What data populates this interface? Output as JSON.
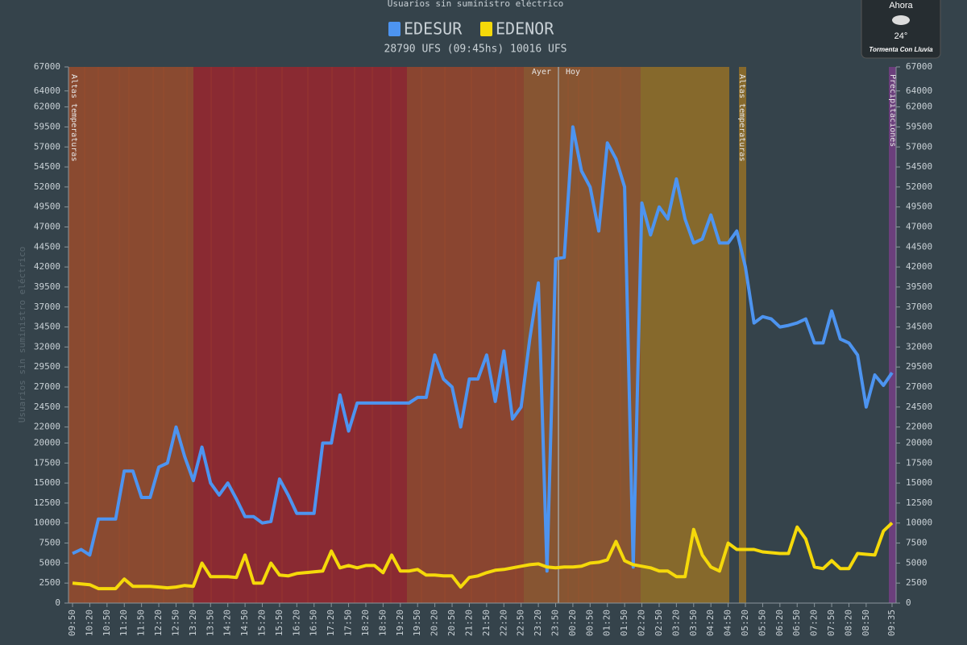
{
  "chart_data": {
    "type": "line",
    "title": "Usuarios sin suministro eléctrico",
    "subtitle": "28790 UFS (09:45hs) 10016 UFS",
    "y_label": "Usuarios sin suministro eléctrico",
    "x": [
      "09:50",
      "10:05",
      "10:20",
      "10:35",
      "10:50",
      "11:05",
      "11:20",
      "11:35",
      "11:50",
      "12:05",
      "12:20",
      "12:35",
      "12:50",
      "13:05",
      "13:20",
      "13:35",
      "13:50",
      "14:05",
      "14:20",
      "14:35",
      "14:50",
      "15:05",
      "15:20",
      "15:35",
      "15:50",
      "16:05",
      "16:20",
      "16:35",
      "16:50",
      "17:05",
      "17:20",
      "17:35",
      "17:50",
      "18:05",
      "18:20",
      "18:35",
      "18:50",
      "19:05",
      "19:20",
      "19:35",
      "19:50",
      "20:05",
      "20:20",
      "20:35",
      "20:50",
      "21:05",
      "21:20",
      "21:35",
      "21:50",
      "22:05",
      "22:20",
      "22:35",
      "22:50",
      "23:05",
      "23:20",
      "23:35",
      "23:50",
      "00:05",
      "00:20",
      "00:35",
      "00:50",
      "01:05",
      "01:20",
      "01:35",
      "01:50",
      "02:05",
      "02:20",
      "02:35",
      "02:50",
      "03:05",
      "03:20",
      "03:35",
      "03:50",
      "04:05",
      "04:20",
      "04:35",
      "04:50",
      "05:05",
      "05:20",
      "05:35",
      "05:50",
      "06:05",
      "06:20",
      "06:35",
      "06:50",
      "07:05",
      "07:20",
      "07:35",
      "07:50",
      "08:05",
      "08:20",
      "08:35",
      "08:50",
      "09:05",
      "09:20",
      "09:35"
    ],
    "xticks": [
      "09:50",
      "10:20",
      "10:50",
      "11:20",
      "11:50",
      "12:20",
      "12:50",
      "13:20",
      "13:50",
      "14:20",
      "14:50",
      "15:20",
      "15:50",
      "16:20",
      "16:50",
      "17:20",
      "17:50",
      "18:20",
      "18:50",
      "19:20",
      "19:50",
      "20:20",
      "20:50",
      "21:20",
      "21:50",
      "22:20",
      "22:50",
      "23:20",
      "23:50",
      "00:20",
      "00:50",
      "01:20",
      "01:50",
      "02:20",
      "02:50",
      "03:20",
      "03:50",
      "04:20",
      "04:50",
      "05:20",
      "05:50",
      "06:20",
      "06:50",
      "07:20",
      "07:50",
      "08:20",
      "08:50",
      "09:35"
    ],
    "series": [
      {
        "name": "EDESUR",
        "color": "#4d94f0",
        "values": [
          6200,
          6700,
          6000,
          10500,
          10500,
          10500,
          16500,
          16500,
          13200,
          13200,
          17000,
          17500,
          22000,
          18300,
          15300,
          19500,
          15000,
          13500,
          15000,
          13000,
          10800,
          10800,
          10000,
          10200,
          15500,
          13500,
          11200,
          11200,
          11200,
          20000,
          20000,
          26000,
          21500,
          25000,
          25000,
          25000,
          25000,
          25000,
          25000,
          25000,
          25700,
          25700,
          31000,
          28000,
          27000,
          22000,
          28000,
          28000,
          31000,
          25200,
          31500,
          23000,
          24500,
          33000,
          40000,
          4000,
          43000,
          43200,
          59500,
          54000,
          52000,
          46500,
          57500,
          55500,
          52000,
          4500,
          50000,
          46000,
          49500,
          48000,
          53000,
          48000,
          45000,
          45500,
          48500,
          45000,
          45000,
          46500,
          42000,
          35000,
          35800,
          35500,
          34500,
          34700,
          35000,
          35500,
          32500,
          32500,
          36500,
          33000,
          32500,
          31000,
          24500,
          28500,
          27200,
          28790
        ]
      },
      {
        "name": "EDENOR",
        "color": "#f5d90a",
        "values": [
          2500,
          2400,
          2300,
          1800,
          1800,
          1800,
          3000,
          2100,
          2100,
          2100,
          2000,
          1900,
          2000,
          2200,
          2100,
          5000,
          3300,
          3300,
          3300,
          3200,
          6000,
          2500,
          2500,
          5000,
          3500,
          3400,
          3700,
          3800,
          3900,
          4000,
          6500,
          4400,
          4700,
          4400,
          4700,
          4700,
          3800,
          6000,
          4000,
          4000,
          4200,
          3500,
          3500,
          3400,
          3400,
          2000,
          3200,
          3400,
          3800,
          4100,
          4200,
          4400,
          4600,
          4800,
          4900,
          4500,
          4400,
          4500,
          4500,
          4600,
          5000,
          5100,
          5400,
          7700,
          5300,
          4800,
          4600,
          4400,
          4000,
          4000,
          3300,
          3300,
          9200,
          6000,
          4500,
          4000,
          7500,
          6700,
          6700,
          6700,
          6400,
          6300,
          6200,
          6200,
          9500,
          8000,
          4500,
          4300,
          5300,
          4300,
          4300,
          6200,
          6100,
          6000,
          9000,
          10016
        ]
      }
    ],
    "ylim": [
      0,
      67000
    ],
    "yticks": [
      0,
      2500,
      5000,
      7500,
      10000,
      12500,
      15000,
      17500,
      20000,
      22000,
      24500,
      27000,
      29500,
      32000,
      34500,
      37000,
      39500,
      42000,
      44500,
      47000,
      49500,
      52000,
      54500,
      57000,
      59500,
      62000,
      64000,
      67000
    ],
    "annotations": [
      "Altas temperaturas",
      "Ayer",
      "Hoy",
      "Altas temperaturas",
      "Precipitaciones"
    ]
  },
  "weather": {
    "label": "Ahora",
    "temperature": "24°",
    "condition": "Tormenta Con Lluvia"
  }
}
